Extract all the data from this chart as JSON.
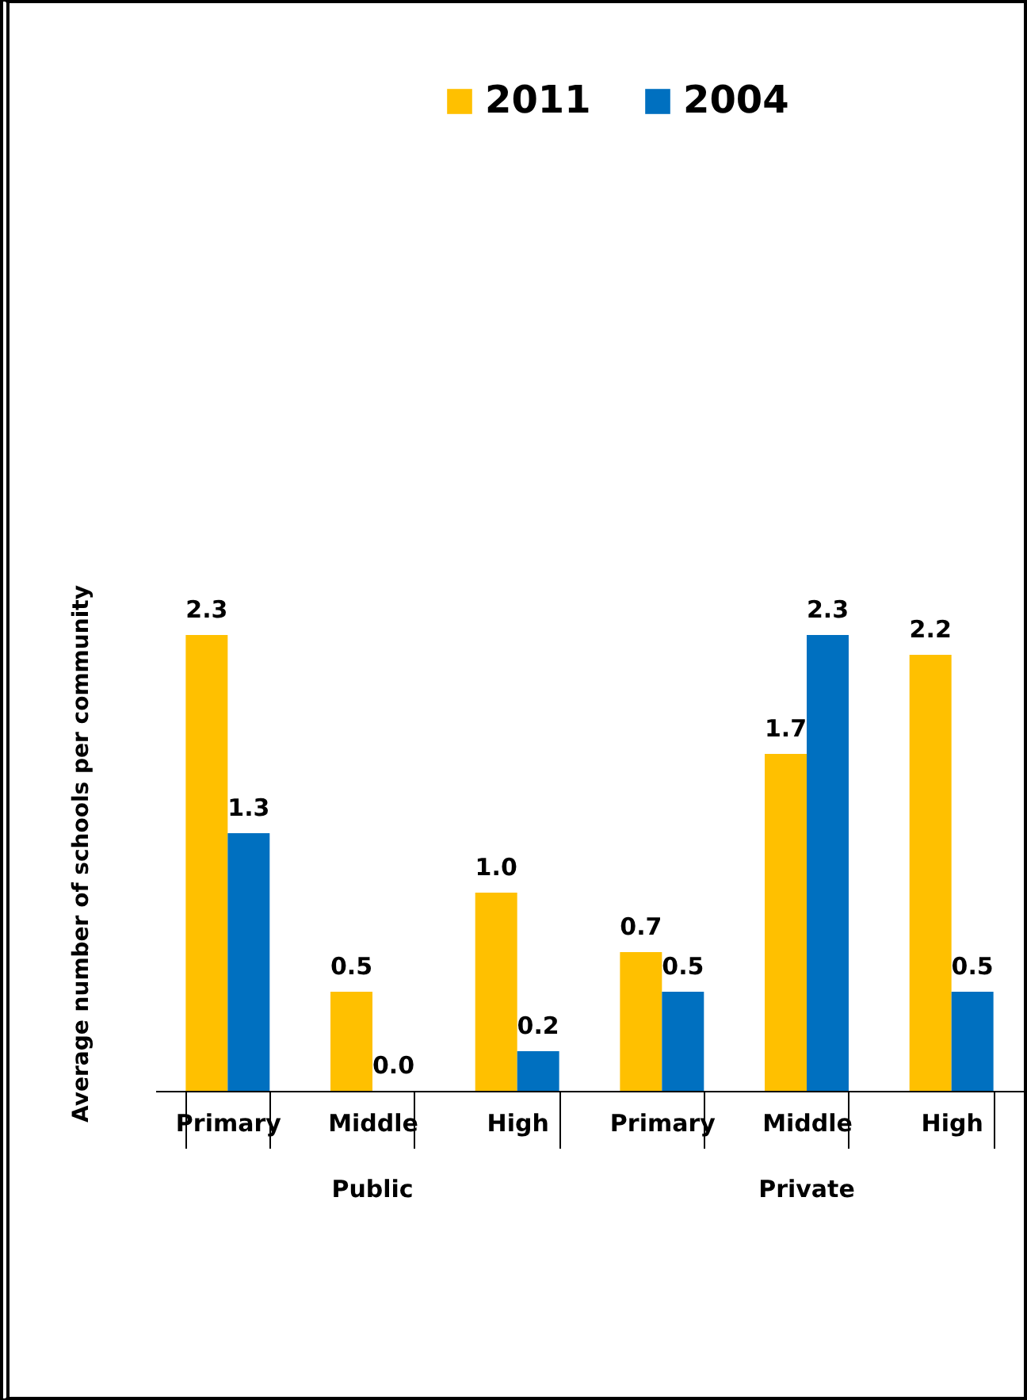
{
  "chart_data": {
    "type": "bar",
    "ylabel": "Average number of schools per community",
    "categories": [
      "Primary",
      "Middle",
      "High",
      "Primary",
      "Middle",
      "High"
    ],
    "series": [
      {
        "name": "2011",
        "color": "#ffc000",
        "values": [
          2.3,
          0.5,
          1.0,
          0.7,
          1.7,
          2.2
        ],
        "value_labels": [
          "2.3",
          "0.5",
          "1.0",
          "0.7",
          "1.7",
          "2.2"
        ]
      },
      {
        "name": "2004",
        "color": "#0070c0",
        "values": [
          1.3,
          0.0,
          0.2,
          0.5,
          2.3,
          0.5
        ],
        "value_labels": [
          "1.3",
          "0.0",
          "0.2",
          "0.5",
          "2.3",
          "0.5"
        ]
      }
    ],
    "annotations": [
      "Public",
      "Private"
    ],
    "legend": "top"
  }
}
